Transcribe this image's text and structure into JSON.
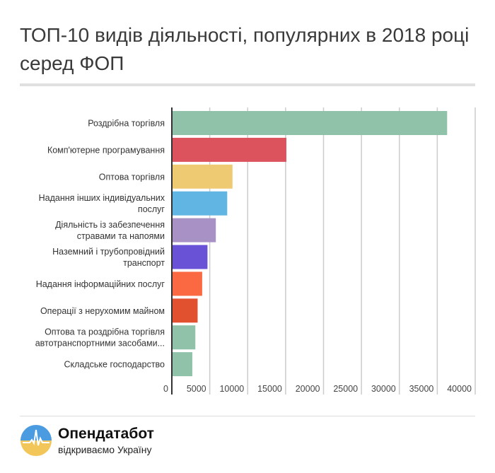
{
  "title": "ТОП-10 видів діяльності, популярних в 2018 році серед ФОП",
  "chart_data": {
    "type": "bar",
    "orientation": "horizontal",
    "title": "ТОП-10 видів діяльності, популярних в 2018 році серед ФОП",
    "categories": [
      [
        "Роздрібна торгівля"
      ],
      [
        "Комп'ютерне програмування"
      ],
      [
        "Оптова торгівля"
      ],
      [
        "Надання інших індивідуальних",
        "послуг"
      ],
      [
        "Діяльність із забезпечення",
        "стравами та напоями"
      ],
      [
        "Наземний і трубопровідний",
        "транспорт"
      ],
      [
        "Надання інформаційних послуг"
      ],
      [
        "Операції з нерухомим майном"
      ],
      [
        "Оптова та роздрібна торгівля",
        "автотранспортними засобами..."
      ],
      [
        "Складське господарство"
      ]
    ],
    "values": [
      36300,
      15100,
      8000,
      7300,
      5800,
      4700,
      4000,
      3400,
      3100,
      2700
    ],
    "colors": [
      "#8fc2a8",
      "#dc525d",
      "#eecb72",
      "#61b5e2",
      "#a891c4",
      "#6a52d6",
      "#fb6942",
      "#e1502f",
      "#8fc2a8",
      "#8fc2a8"
    ],
    "xlim": [
      0,
      40000
    ],
    "xticks": [
      "0",
      "5000",
      "10000",
      "15000",
      "20000",
      "25000",
      "30000",
      "35000",
      "40000"
    ],
    "grid": true,
    "xlabel": "",
    "ylabel": ""
  },
  "logo": {
    "brand": "Опендатабот",
    "slogan": "відкриваємо Україну"
  }
}
